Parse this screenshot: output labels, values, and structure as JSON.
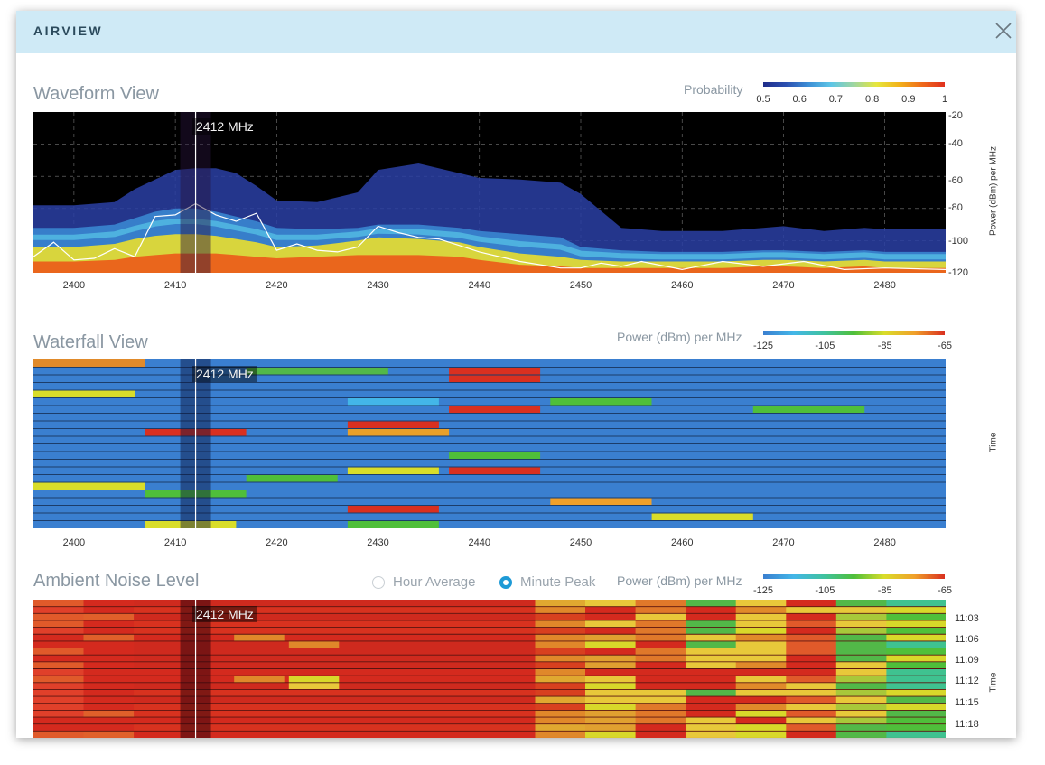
{
  "header": {
    "title": "AIRVIEW"
  },
  "cursor": {
    "label": "2412 MHz",
    "frequency_mhz": 2412
  },
  "waveform": {
    "title": "Waveform View",
    "legend": {
      "label": "Probability",
      "ticks": [
        "0.5",
        "0.6",
        "0.7",
        "0.8",
        "0.9",
        "1"
      ]
    },
    "x_ticks": [
      "2400",
      "2410",
      "2420",
      "2430",
      "2440",
      "2450",
      "2460",
      "2470",
      "2480"
    ],
    "y_ticks": [
      "-20",
      "-40",
      "-60",
      "-80",
      "-100",
      "-120"
    ],
    "y_label": "Power (dBm) per MHz"
  },
  "waterfall": {
    "title": "Waterfall View",
    "legend": {
      "label": "Power (dBm) per MHz",
      "ticks": [
        "-125",
        "-105",
        "-85",
        "-65"
      ]
    },
    "x_ticks": [
      "2400",
      "2410",
      "2420",
      "2430",
      "2440",
      "2450",
      "2460",
      "2470",
      "2480"
    ],
    "y_label": "Time"
  },
  "ambient": {
    "title": "Ambient Noise Level",
    "options": {
      "hour_average": "Hour Average",
      "minute_peak": "Minute Peak",
      "selected": "minute_peak"
    },
    "legend": {
      "label": "Power (dBm) per MHz",
      "ticks": [
        "-125",
        "-105",
        "-85",
        "-65"
      ]
    },
    "time_ticks": [
      "11:03",
      "11:06",
      "11:09",
      "11:12",
      "11:15",
      "11:18"
    ],
    "y_label": "Time"
  },
  "colors": {
    "header_bg": "#cfeaf6",
    "probability_scale": [
      "#1f2d8a",
      "#2b4fb0",
      "#3d8fd6",
      "#5ec6e6",
      "#9fd6a0",
      "#e6e63c",
      "#f2b21a",
      "#ef6a1a",
      "#e0301e"
    ],
    "power_scale": [
      "#3a7fd0",
      "#43b6e8",
      "#3fc2a0",
      "#4fbf3a",
      "#d9dd2a",
      "#f0a02a",
      "#d93020"
    ],
    "radio_selected": "#1e9ad6"
  },
  "chart_data": [
    {
      "type": "area",
      "title": "Waveform View",
      "xlabel": "",
      "ylabel": "Power (dBm) per MHz",
      "xlim": [
        2396,
        2486
      ],
      "ylim": [
        -120,
        -20
      ],
      "grid": true,
      "x": [
        2396,
        2400,
        2404,
        2406,
        2408,
        2410,
        2412,
        2414,
        2416,
        2418,
        2420,
        2424,
        2428,
        2430,
        2434,
        2438,
        2440,
        2444,
        2448,
        2450,
        2454,
        2458,
        2460,
        2464,
        2468,
        2470,
        2474,
        2478,
        2480,
        2486
      ],
      "series": [
        {
          "name": "0.5",
          "values": [
            -78,
            -78,
            -76,
            -68,
            -62,
            -56,
            -55,
            -55,
            -58,
            -66,
            -75,
            -76,
            -70,
            -56,
            -52,
            -58,
            -61,
            -62,
            -64,
            -71,
            -92,
            -94,
            -94,
            -94,
            -92,
            -91,
            -94,
            -92,
            -93,
            -93
          ]
        },
        {
          "name": "0.7",
          "values": [
            -92,
            -92,
            -90,
            -86,
            -82,
            -80,
            -80,
            -82,
            -85,
            -88,
            -92,
            -93,
            -92,
            -90,
            -90,
            -92,
            -94,
            -96,
            -98,
            -104,
            -106,
            -107,
            -107,
            -107,
            -106,
            -106,
            -107,
            -106,
            -107,
            -107
          ]
        },
        {
          "name": "0.8",
          "values": [
            -104,
            -104,
            -102,
            -99,
            -97,
            -96,
            -96,
            -97,
            -99,
            -101,
            -104,
            -103,
            -100,
            -98,
            -99,
            -101,
            -104,
            -108,
            -110,
            -112,
            -113,
            -113,
            -113,
            -113,
            -112,
            -112,
            -113,
            -112,
            -113,
            -113
          ]
        },
        {
          "name": "1",
          "values": [
            -113,
            -113,
            -112,
            -110,
            -109,
            -108,
            -108,
            -108,
            -109,
            -110,
            -111,
            -110,
            -109,
            -109,
            -109,
            -110,
            -112,
            -115,
            -116,
            -117,
            -117,
            -117,
            -117,
            -117,
            -116,
            -116,
            -117,
            -116,
            -117,
            -117
          ]
        }
      ],
      "peak_line": {
        "x": [
          2396,
          2398,
          2400,
          2402,
          2404,
          2406,
          2408,
          2410,
          2412,
          2414,
          2416,
          2418,
          2420,
          2422,
          2424,
          2426,
          2428,
          2430,
          2432,
          2434,
          2436,
          2438,
          2440,
          2444,
          2448,
          2450,
          2452,
          2454,
          2456,
          2460,
          2464,
          2468,
          2472,
          2476,
          2480,
          2486
        ],
        "values": [
          -110,
          -101,
          -112,
          -111,
          -105,
          -110,
          -85,
          -84,
          -77,
          -84,
          -88,
          -83,
          -106,
          -102,
          -106,
          -107,
          -104,
          -91,
          -95,
          -98,
          -99,
          -103,
          -107,
          -113,
          -117,
          -117,
          -114,
          -116,
          -113,
          -118,
          -113,
          -116,
          -113,
          -118,
          -117,
          -118
        ]
      }
    },
    {
      "type": "heatmap",
      "title": "Waterfall View",
      "x": [
        2400,
        2410,
        2420,
        2430,
        2440,
        2450,
        2460,
        2470,
        2480
      ],
      "ylabel": "Time",
      "colorscale_range": [
        -125,
        -65
      ]
    },
    {
      "type": "heatmap",
      "title": "Ambient Noise Level",
      "y": [
        "11:03",
        "11:06",
        "11:09",
        "11:12",
        "11:15",
        "11:18"
      ],
      "ylabel": "Time",
      "colorscale_range": [
        -125,
        -65
      ]
    }
  ]
}
